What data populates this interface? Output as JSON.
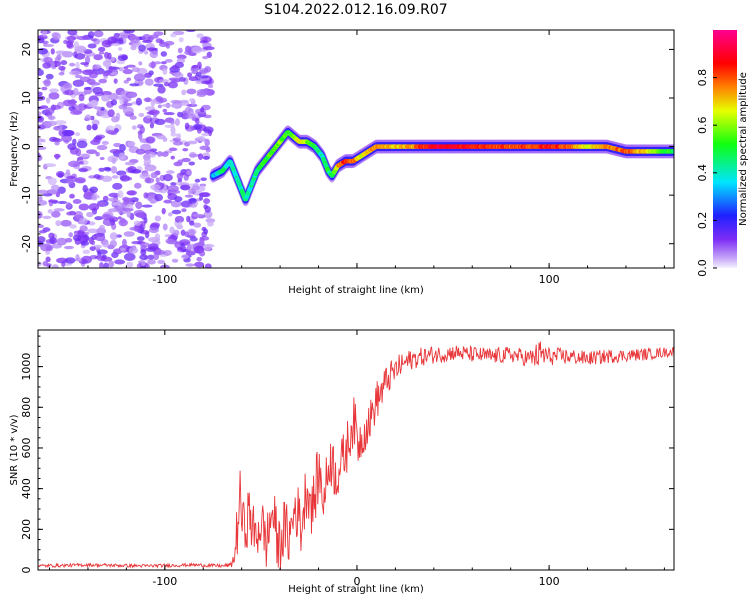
{
  "figure_title": "S104.2022.012.16.09.R07",
  "chart_data": [
    {
      "type": "heatmap",
      "title": "",
      "xlabel": "Height of straight line (km)",
      "ylabel": "Frequency (Hz)",
      "xlim": [
        -166,
        165
      ],
      "ylim": [
        -25,
        24
      ],
      "xticks": [
        -100,
        0,
        100
      ],
      "xtick_labels": [
        "-100",
        "",
        "100"
      ],
      "yticks": [
        -20,
        -10,
        0,
        10,
        20
      ],
      "ytick_labels": [
        "-20",
        "-10",
        "0",
        "10",
        "20"
      ],
      "grid": false,
      "colorbar": {
        "label": "Normalized spectral amplitude",
        "range": [
          0,
          1
        ],
        "ticks": [
          0.0,
          0.2,
          0.4,
          0.6,
          0.8
        ],
        "tick_labels": [
          "0.0",
          "0.2",
          "0.4",
          "0.6",
          "0.8"
        ],
        "colormap": "rainbow (violet → blue → cyan → green → yellow → red → magenta)"
      },
      "noise_region_x": [
        -166,
        -76
      ],
      "signal_ridge": {
        "x": [
          -75,
          -70,
          -66,
          -62,
          -58,
          -55,
          -52,
          -48,
          -44,
          -40,
          -36,
          -33,
          -30,
          -26,
          -22,
          -18,
          -15,
          -13,
          -10,
          -6,
          -2,
          2,
          6,
          10,
          20,
          30,
          40,
          50,
          60,
          70,
          80,
          90,
          100,
          110,
          120,
          130,
          140,
          150,
          158,
          165
        ],
        "y": [
          -6,
          -5,
          -3,
          -7,
          -11,
          -8,
          -5,
          -3,
          -1,
          1,
          3,
          2,
          1,
          1,
          0,
          -2,
          -5,
          -6,
          -4,
          -3,
          -3,
          -2,
          -1,
          0,
          0,
          0,
          0,
          0,
          0,
          0,
          0,
          0,
          0,
          0,
          0,
          0,
          -1,
          -1,
          -1,
          -1
        ],
        "amplitude": [
          0.3,
          0.45,
          0.4,
          0.4,
          0.45,
          0.4,
          0.45,
          0.5,
          0.55,
          0.6,
          0.5,
          0.55,
          0.7,
          0.6,
          0.5,
          0.4,
          0.5,
          0.45,
          0.7,
          0.85,
          0.8,
          0.65,
          0.7,
          0.75,
          0.7,
          0.75,
          0.9,
          0.9,
          0.85,
          0.8,
          0.8,
          0.8,
          0.85,
          0.8,
          0.65,
          0.75,
          0.8,
          0.7,
          0.55,
          0.5
        ]
      }
    },
    {
      "type": "line",
      "title": "",
      "xlabel": "Height of straight line (km)",
      "ylabel": "SNR (10 * v/v)",
      "xlim": [
        -166,
        165
      ],
      "ylim": [
        0,
        1180
      ],
      "xticks": [
        -100,
        0,
        100
      ],
      "xtick_labels": [
        "-100",
        "0",
        "100"
      ],
      "yticks": [
        0,
        200,
        400,
        600,
        800,
        1000
      ],
      "ytick_labels": [
        "0",
        "200",
        "400",
        "600",
        "800",
        "1000"
      ],
      "grid": false,
      "series": [
        {
          "color": "#e8373a",
          "x": [
            -166,
            -140,
            -110,
            -85,
            -70,
            -65,
            -63,
            -61,
            -59,
            -56,
            -53,
            -50,
            -47,
            -44,
            -41,
            -38,
            -35,
            -32,
            -29,
            -26,
            -23,
            -20,
            -17,
            -14,
            -11,
            -8,
            -5,
            -2,
            1,
            4,
            7,
            10,
            13,
            16,
            19,
            22,
            25,
            30,
            35,
            40,
            45,
            50,
            60,
            70,
            80,
            90,
            96,
            100,
            110,
            120,
            130,
            140,
            150,
            160,
            165
          ],
          "values": [
            20,
            25,
            20,
            25,
            20,
            25,
            120,
            360,
            200,
            280,
            150,
            240,
            130,
            300,
            110,
            200,
            160,
            320,
            210,
            420,
            300,
            480,
            350,
            560,
            470,
            520,
            610,
            740,
            620,
            690,
            740,
            830,
            880,
            940,
            970,
            1000,
            1020,
            1040,
            1050,
            1060,
            1060,
            1070,
            1060,
            1050,
            1060,
            1040,
            1060,
            1050,
            1050,
            1040,
            1050,
            1055,
            1060,
            1070,
            1075
          ],
          "noise_amplitude": [
            8,
            8,
            8,
            8,
            8,
            12,
            140,
            150,
            140,
            140,
            140,
            140,
            140,
            150,
            140,
            150,
            150,
            150,
            150,
            150,
            150,
            150,
            140,
            140,
            140,
            130,
            130,
            130,
            120,
            110,
            100,
            100,
            90,
            80,
            70,
            60,
            55,
            50,
            45,
            45,
            40,
            40,
            40,
            40,
            40,
            45,
            80,
            45,
            40,
            35,
            35,
            30,
            30,
            25,
            25
          ]
        }
      ]
    }
  ]
}
